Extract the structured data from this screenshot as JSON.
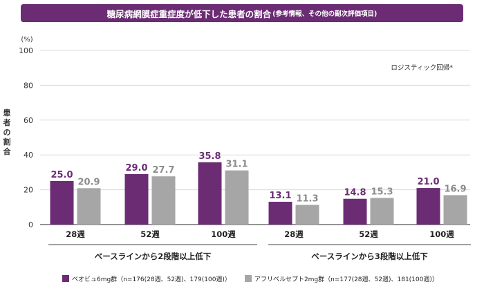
{
  "header": {
    "title": "糖尿病網膜症重症度が低下した患者の割合",
    "subtitle": "(参考情報、その他の副次評価項目)"
  },
  "colors": {
    "beovu": "#6b2c74",
    "aflibercept": "#a6a6a6",
    "header_bg": "#6b2c74"
  },
  "chart_data": {
    "type": "bar",
    "title": "糖尿病網膜症重症度が低下した患者の割合",
    "ylabel": "患者の割合",
    "yunit": "(%)",
    "ylim": [
      0,
      100
    ],
    "yticks": [
      0,
      20,
      40,
      60,
      80,
      100
    ],
    "annotation": "ロジスティック回帰*",
    "groups": [
      {
        "label": "ベースラインから2段階以上低下",
        "categories": [
          "28週",
          "52週",
          "100週"
        ]
      },
      {
        "label": "ベースラインから3段階以上低下",
        "categories": [
          "28週",
          "52週",
          "100週"
        ]
      }
    ],
    "series": [
      {
        "name": "ベオビュ6mg群（n=176(28週、52週)、179(100週)）",
        "values": [
          25.0,
          29.0,
          35.8,
          13.1,
          14.8,
          21.0
        ],
        "labels": [
          "25.0",
          "29.0",
          "35.8",
          "13.1",
          "14.8",
          "21.0"
        ]
      },
      {
        "name": "アフリベルセプト2mg群（n=177(28週、52週)、181(100週)）",
        "values": [
          20.9,
          27.7,
          31.1,
          11.3,
          15.3,
          16.9
        ],
        "labels": [
          "20.9",
          "27.7",
          "31.1",
          "11.3",
          "15.3",
          "16.9"
        ]
      }
    ]
  }
}
